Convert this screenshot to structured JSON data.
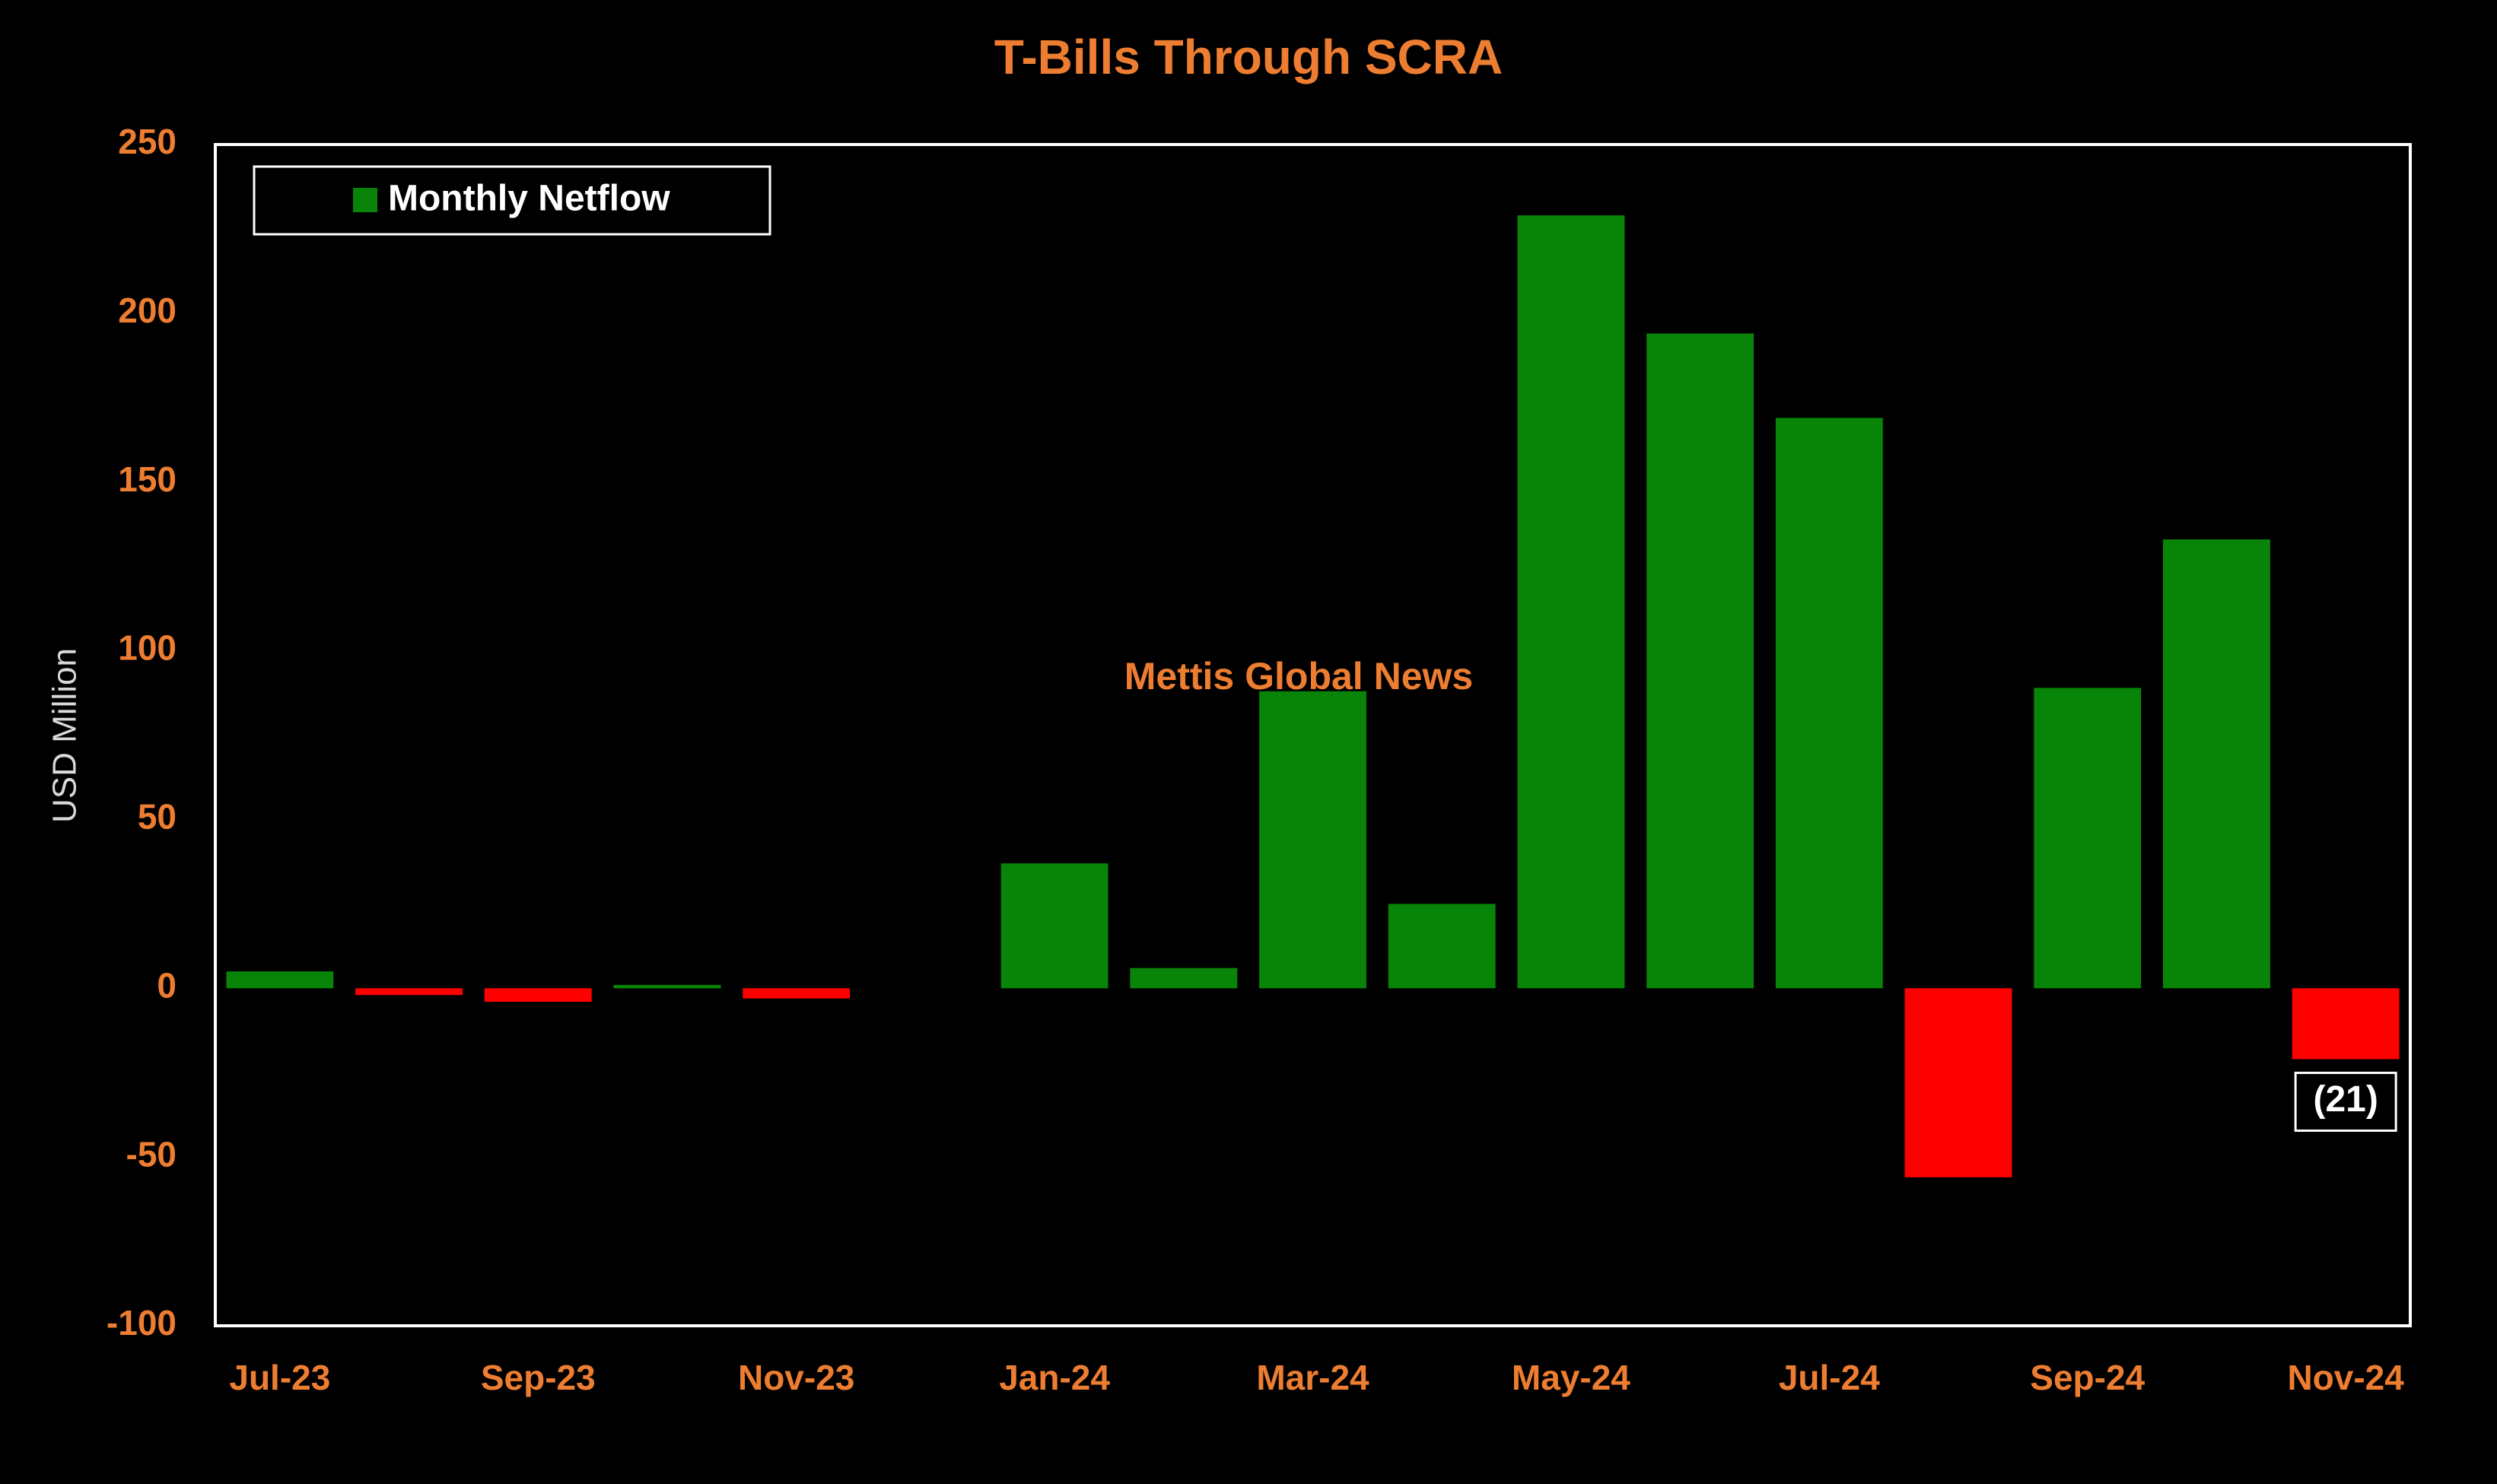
{
  "chart_data": {
    "type": "bar",
    "title": "T-Bills Through SCRA",
    "xlabel": "",
    "ylabel": "USD Million",
    "ylim": [
      -100,
      250
    ],
    "yticks": [
      "250",
      "200",
      "150",
      "100",
      "50",
      "0",
      "-50",
      "-100"
    ],
    "ytick_values": [
      250,
      200,
      150,
      100,
      50,
      0,
      -50,
      -100
    ],
    "categories": [
      "Jul-23",
      "Aug-23",
      "Sep-23",
      "Oct-23",
      "Nov-23",
      "Dec-23",
      "Jan-24",
      "Feb-24",
      "Mar-24",
      "Apr-24",
      "May-24",
      "Jun-24",
      "Jul-24",
      "Aug-24",
      "Sep-24",
      "Oct-24",
      "Nov-24"
    ],
    "xtick_labels": [
      "Jul-23",
      "",
      "Sep-23",
      "",
      "Nov-23",
      "",
      "Jan-24",
      "",
      "Mar-24",
      "",
      "May-24",
      "",
      "Jul-24",
      "",
      "Sep-24",
      "",
      "Nov-24"
    ],
    "series": [
      {
        "name": "Monthly Netflow",
        "values": [
          5,
          -2,
          -4,
          1,
          -3,
          0,
          37,
          6,
          88,
          25,
          229,
          194,
          169,
          -56,
          89,
          133,
          -21
        ]
      }
    ],
    "data_labels": [
      {
        "category": "Nov-24",
        "text": "(21)"
      }
    ],
    "annotations": [
      "Mettis Global News"
    ],
    "legend_position": "top-left",
    "grid": false,
    "colors": {
      "background": "#000000",
      "positive": "#088508",
      "negative": "#ff0000",
      "text_accent": "#ed7d31",
      "axis_label": "#d9d9d9",
      "frame": "#ffffff",
      "legend_text": "#ffffff",
      "data_label_text": "#ffffff"
    }
  }
}
